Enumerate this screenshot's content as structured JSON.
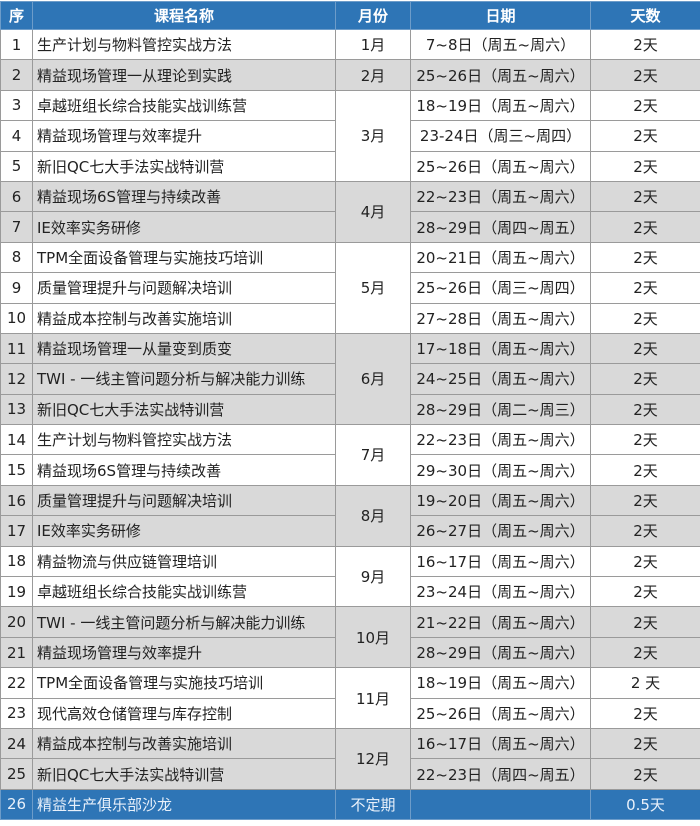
{
  "headers": {
    "no": "序",
    "name": "课程名称",
    "month": "月份",
    "date": "日期",
    "days": "天数"
  },
  "colors": {
    "header": "#2e75b6",
    "shaded_row": "#d9d9d9",
    "final_row": "#2e75b6"
  },
  "groups": [
    {
      "month": "1月",
      "courses": [
        {
          "no": "1",
          "name": "生产计划与物料管控实战方法",
          "date": "7~8日（周五~周六）",
          "days": "2天"
        }
      ]
    },
    {
      "month": "2月",
      "courses": [
        {
          "no": "2",
          "name": "精益现场管理一从理论到实践",
          "date": "25~26日（周五~周六）",
          "days": "2天"
        }
      ]
    },
    {
      "month": "3月",
      "courses": [
        {
          "no": "3",
          "name": "卓越班组长综合技能实战训练营",
          "date": "18~19日（周五~周六）",
          "days": "2天"
        },
        {
          "no": "4",
          "name": "精益现场管理与效率提升",
          "date": "23-24日（周三~周四）",
          "days": "2天"
        },
        {
          "no": "5",
          "name": "新旧QC七大手法实战特训营",
          "date": "25~26日（周五~周六）",
          "days": "2天"
        }
      ]
    },
    {
      "month": "4月",
      "courses": [
        {
          "no": "6",
          "name": "精益现场6S管理与持续改善",
          "date": "22~23日（周五~周六）",
          "days": "2天"
        },
        {
          "no": "7",
          "name": "IE效率实务研修",
          "date": "28~29日（周四~周五）",
          "days": "2天"
        }
      ]
    },
    {
      "month": "5月",
      "courses": [
        {
          "no": "8",
          "name": "TPM全面设备管理与实施技巧培训",
          "date": "20~21日（周五~周六）",
          "days": "2天"
        },
        {
          "no": "9",
          "name": "质量管理提升与问题解决培训",
          "date": "25~26日（周三~周四）",
          "days": "2天"
        },
        {
          "no": "10",
          "name": "精益成本控制与改善实施培训",
          "date": "27~28日（周五~周六）",
          "days": "2天"
        }
      ]
    },
    {
      "month": "6月",
      "courses": [
        {
          "no": "11",
          "name": "精益现场管理一从量变到质变",
          "date": "17~18日（周五~周六）",
          "days": "2天"
        },
        {
          "no": "12",
          "name": "TWI - 一线主管问题分析与解决能力训练",
          "date": "24~25日（周五~周六）",
          "days": "2天"
        },
        {
          "no": "13",
          "name": "新旧QC七大手法实战特训营",
          "date": "28~29日（周二~周三）",
          "days": "2天"
        }
      ]
    },
    {
      "month": "7月",
      "courses": [
        {
          "no": "14",
          "name": "生产计划与物料管控实战方法",
          "date": "22~23日（周五~周六）",
          "days": "2天"
        },
        {
          "no": "15",
          "name": "精益现场6S管理与持续改善",
          "date": "29~30日（周五~周六）",
          "days": "2天"
        }
      ]
    },
    {
      "month": "8月",
      "courses": [
        {
          "no": "16",
          "name": "质量管理提升与问题解决培训",
          "date": "19~20日（周五~周六）",
          "days": "2天"
        },
        {
          "no": "17",
          "name": "IE效率实务研修",
          "date": "26~27日（周五~周六）",
          "days": "2天"
        }
      ]
    },
    {
      "month": "9月",
      "courses": [
        {
          "no": "18",
          "name": "精益物流与供应链管理培训",
          "date": "16~17日（周五~周六）",
          "days": "2天"
        },
        {
          "no": "19",
          "name": "卓越班组长综合技能实战训练营",
          "date": "23~24日（周五~周六）",
          "days": "2天"
        }
      ]
    },
    {
      "month": "10月",
      "courses": [
        {
          "no": "20",
          "name": "TWI - 一线主管问题分析与解决能力训练",
          "date": "21~22日（周五~周六）",
          "days": "2天"
        },
        {
          "no": "21",
          "name": "精益现场管理与效率提升",
          "date": "28~29日（周五~周六）",
          "days": "2天"
        }
      ]
    },
    {
      "month": "11月",
      "courses": [
        {
          "no": "22",
          "name": "TPM全面设备管理与实施技巧培训",
          "date": "18~19日（周五~周六）",
          "days": "2 天"
        },
        {
          "no": "23",
          "name": "现代高效仓储管理与库存控制",
          "date": "25~26日（周五~周六）",
          "days": "2天"
        }
      ]
    },
    {
      "month": "12月",
      "courses": [
        {
          "no": "24",
          "name": "精益成本控制与改善实施培训",
          "date": "16~17日（周五~周六）",
          "days": "2天"
        },
        {
          "no": "25",
          "name": "新旧QC七大手法实战特训营",
          "date": "22~23日（周四~周五）",
          "days": "2天"
        }
      ]
    }
  ],
  "final_row": {
    "no": "26",
    "name": "精益生产俱乐部沙龙",
    "month": "不定期",
    "date": "",
    "days": "0.5天"
  }
}
